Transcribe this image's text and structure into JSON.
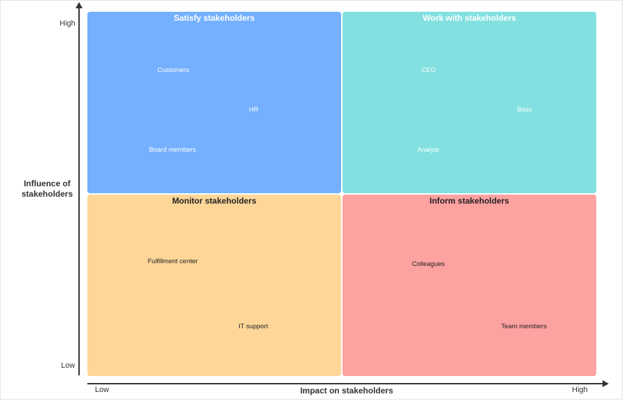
{
  "colors": {
    "satisfy": "#74b0fd",
    "work": "#82e1e0",
    "monitor": "#fdd698",
    "inform": "#fca2a1",
    "axis": "#333333"
  },
  "axes": {
    "y_title": "Influence of stakeholders",
    "y_high": "High",
    "y_low": "Low",
    "x_title": "Impact on stakeholders",
    "x_low": "Low",
    "x_high": "High"
  },
  "quadrants": {
    "satisfy": {
      "title": "Satisfy stakeholders",
      "items": [
        "Customers",
        "HR",
        "Board members"
      ]
    },
    "work": {
      "title": "Work with stakeholders",
      "items": [
        "CEO",
        "Boss",
        "Analyst"
      ]
    },
    "monitor": {
      "title": "Monitor stakeholders",
      "items": [
        "Fulfillment center",
        "IT support"
      ]
    },
    "inform": {
      "title": "Inform stakeholders",
      "items": [
        "Colleagues",
        "Team members"
      ]
    }
  }
}
